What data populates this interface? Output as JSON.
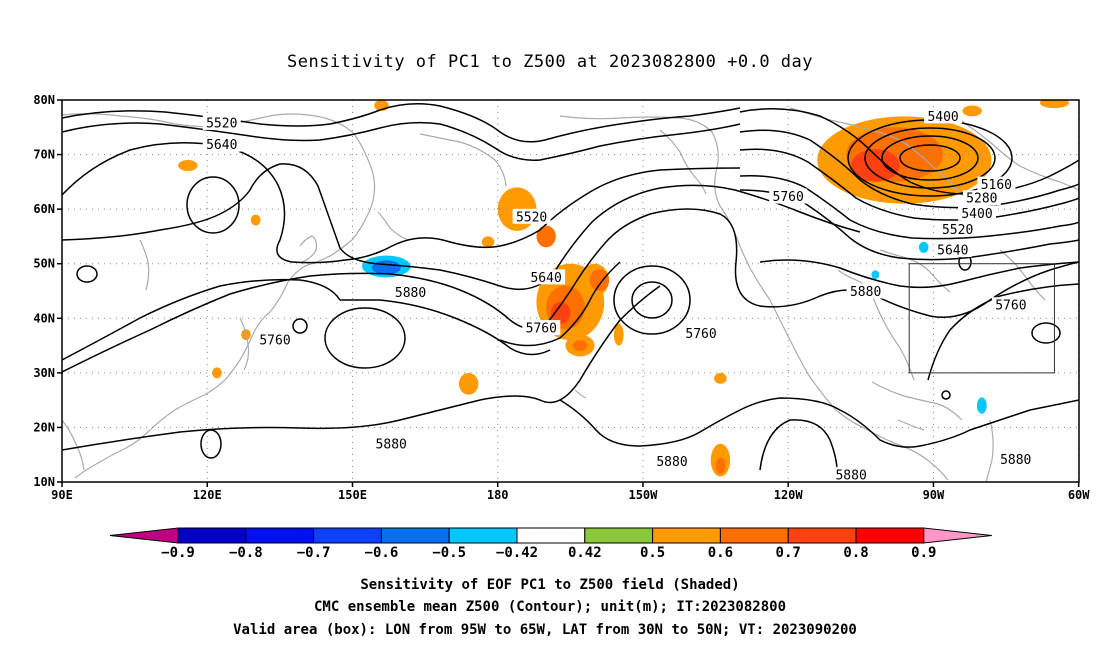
{
  "title": "Sensitivity of PC1 to Z500 at 2023082800 +0.0 day",
  "map": {
    "lon_range": [
      90,
      300
    ],
    "lat_range": [
      10,
      80
    ],
    "lat_ticks": [
      {
        "lat": 80,
        "label": "80N"
      },
      {
        "lat": 70,
        "label": "70N"
      },
      {
        "lat": 60,
        "label": "60N"
      },
      {
        "lat": 50,
        "label": "50N"
      },
      {
        "lat": 40,
        "label": "40N"
      },
      {
        "lat": 30,
        "label": "30N"
      },
      {
        "lat": 20,
        "label": "20N"
      },
      {
        "lat": 10,
        "label": "10N"
      }
    ],
    "lon_ticks": [
      {
        "lon": 90,
        "label": "90E"
      },
      {
        "lon": 120,
        "label": "120E"
      },
      {
        "lon": 150,
        "label": "150E"
      },
      {
        "lon": 180,
        "label": "180"
      },
      {
        "lon": 210,
        "label": "150W"
      },
      {
        "lon": 240,
        "label": "120W"
      },
      {
        "lon": 270,
        "label": "90W"
      },
      {
        "lon": 300,
        "label": "60W"
      }
    ],
    "valid_box": {
      "lon_min": 265,
      "lon_max": 295,
      "lat_min": 30,
      "lat_max": 50
    },
    "contour_labels": [
      {
        "text": "5520",
        "lon": 123,
        "lat": 75.8
      },
      {
        "text": "5640",
        "lon": 123,
        "lat": 71.8
      },
      {
        "text": "5400",
        "lon": 272,
        "lat": 77
      },
      {
        "text": "5160",
        "lon": 283,
        "lat": 64.5
      },
      {
        "text": "5280",
        "lon": 280,
        "lat": 62
      },
      {
        "text": "5400",
        "lon": 279,
        "lat": 59.2
      },
      {
        "text": "5520",
        "lon": 275,
        "lat": 56.3
      },
      {
        "text": "5640",
        "lon": 274,
        "lat": 52.5
      },
      {
        "text": "5760",
        "lon": 240,
        "lat": 62.3
      },
      {
        "text": "5520",
        "lon": 187,
        "lat": 58.6
      },
      {
        "text": "5640",
        "lon": 190,
        "lat": 47.5
      },
      {
        "text": "5760",
        "lon": 189,
        "lat": 38.2
      },
      {
        "text": "5760",
        "lon": 134,
        "lat": 36
      },
      {
        "text": "5760",
        "lon": 222,
        "lat": 37.2
      },
      {
        "text": "5880",
        "lon": 162,
        "lat": 44.7
      },
      {
        "text": "5880",
        "lon": 256,
        "lat": 44.9
      },
      {
        "text": "5760",
        "lon": 286,
        "lat": 42.4
      },
      {
        "text": "5880",
        "lon": 158,
        "lat": 17
      },
      {
        "text": "5880",
        "lon": 216,
        "lat": 13.8
      },
      {
        "text": "5880",
        "lon": 253,
        "lat": 11.3
      },
      {
        "text": "5880",
        "lon": 287,
        "lat": 14.1
      }
    ],
    "sensitivity_patches": [
      {
        "lon": 264,
        "lat": 69,
        "rx": 18,
        "ry": 8,
        "value": 0.5
      },
      {
        "lon": 262,
        "lat": 70,
        "rx": 10,
        "ry": 5,
        "value": 0.6
      },
      {
        "lon": 258,
        "lat": 68,
        "rx": 5,
        "ry": 3,
        "value": 0.7
      },
      {
        "lon": 195,
        "lat": 43,
        "rx": 7,
        "ry": 7,
        "value": 0.5
      },
      {
        "lon": 194,
        "lat": 42,
        "rx": 4,
        "ry": 4,
        "value": 0.6
      },
      {
        "lon": 193,
        "lat": 41,
        "rx": 2,
        "ry": 2,
        "value": 0.7
      },
      {
        "lon": 200,
        "lat": 47,
        "rx": 3,
        "ry": 3,
        "value": 0.5
      },
      {
        "lon": 201,
        "lat": 47,
        "rx": 2,
        "ry": 2,
        "value": 0.6
      },
      {
        "lon": 197,
        "lat": 35,
        "rx": 3,
        "ry": 2,
        "value": 0.5
      },
      {
        "lon": 197,
        "lat": 35,
        "rx": 1.5,
        "ry": 1,
        "value": 0.6
      },
      {
        "lon": 184,
        "lat": 60,
        "rx": 4,
        "ry": 4,
        "value": 0.5
      },
      {
        "lon": 190,
        "lat": 55,
        "rx": 2,
        "ry": 2,
        "value": 0.6
      },
      {
        "lon": 226,
        "lat": 14,
        "rx": 2,
        "ry": 3,
        "value": 0.5
      },
      {
        "lon": 226,
        "lat": 13,
        "rx": 1,
        "ry": 1.5,
        "value": 0.6
      },
      {
        "lon": 174,
        "lat": 28,
        "rx": 2,
        "ry": 2,
        "value": 0.5
      },
      {
        "lon": 157,
        "lat": 49.5,
        "rx": 5,
        "ry": 2,
        "value": -0.5
      },
      {
        "lon": 157,
        "lat": 49.3,
        "rx": 3,
        "ry": 1.3,
        "value": -0.6
      },
      {
        "lon": 280,
        "lat": 24,
        "rx": 1,
        "ry": 1.5,
        "value": -0.5
      },
      {
        "lon": 268,
        "lat": 53,
        "rx": 1,
        "ry": 1,
        "value": -0.5
      },
      {
        "lon": 258,
        "lat": 48,
        "rx": 0.8,
        "ry": 0.8,
        "value": -0.5
      },
      {
        "lon": 205,
        "lat": 37,
        "rx": 1,
        "ry": 2,
        "value": 0.5
      },
      {
        "lon": 226,
        "lat": 29,
        "rx": 1.3,
        "ry": 1,
        "value": 0.5
      },
      {
        "lon": 122,
        "lat": 30,
        "rx": 1,
        "ry": 1,
        "value": 0.5
      },
      {
        "lon": 116,
        "lat": 68,
        "rx": 2,
        "ry": 1,
        "value": 0.5
      },
      {
        "lon": 130,
        "lat": 58,
        "rx": 1,
        "ry": 1,
        "value": 0.5
      },
      {
        "lon": 178,
        "lat": 54,
        "rx": 1.3,
        "ry": 1,
        "value": 0.5
      },
      {
        "lon": 128,
        "lat": 37,
        "rx": 1,
        "ry": 1,
        "value": 0.5
      },
      {
        "lon": 278,
        "lat": 78,
        "rx": 2,
        "ry": 1,
        "value": 0.5
      },
      {
        "lon": 295,
        "lat": 79.5,
        "rx": 3,
        "ry": 1,
        "value": 0.5
      },
      {
        "lon": 156,
        "lat": 79,
        "rx": 1.5,
        "ry": 1,
        "value": 0.5
      }
    ]
  },
  "colorbar": {
    "colors": [
      "#c00080",
      "#0000c8",
      "#0010f0",
      "#1040ff",
      "#0870f0",
      "#00c8ff",
      "#ffffff",
      "#8cc83c",
      "#ff9a00",
      "#ff7000",
      "#ff4010",
      "#ff0000",
      "#ff96c8"
    ],
    "labels": [
      "-0.9",
      "-0.8",
      "-0.7",
      "-0.6",
      "-0.5",
      "-0.42",
      "0.42",
      "0.5",
      "0.6",
      "0.7",
      "0.8",
      "0.9"
    ]
  },
  "captions": [
    "Sensitivity of EOF PC1 to Z500 field (Shaded)",
    "CMC ensemble mean Z500 (Contour); unit(m); IT:2023082800",
    "Valid area (box): LON from 95W to 65W, LAT from 30N to 50N; VT: 2023090200"
  ]
}
